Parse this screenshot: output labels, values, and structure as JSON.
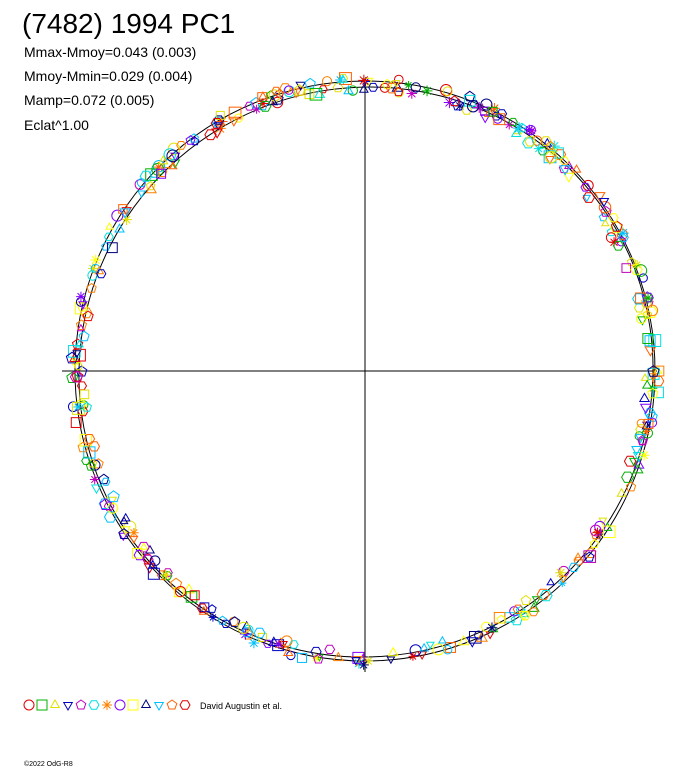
{
  "header": {
    "title": "(7482) 1994 PC1",
    "lines": [
      "Mmax-Mmoy=0.043 (0.003)",
      "Mmoy-Mmin=0.029 (0.004)",
      "Mamp=0.072 (0.005)",
      "Eclat^1.00"
    ]
  },
  "legend": {
    "credit": "David Augustin et al."
  },
  "footer": {
    "copyright": "©2022 OdG-R8"
  }
}
